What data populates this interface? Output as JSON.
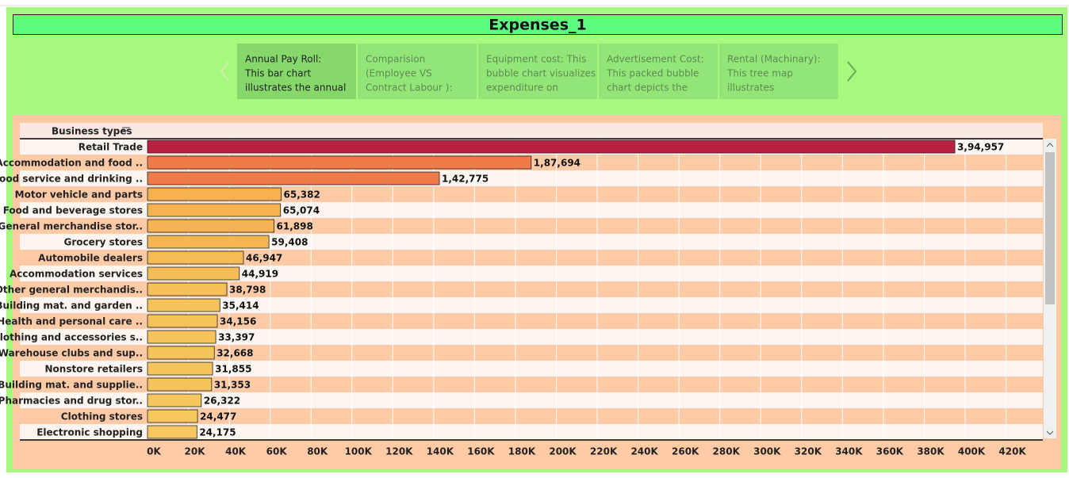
{
  "header": {
    "title": "Expenses_1"
  },
  "story_points": [
    {
      "lines": [
        "Annual Pay Roll:",
        "This bar chart",
        "illustrates the annual"
      ],
      "active": true
    },
    {
      "lines": [
        "Comparision",
        "(Employee VS",
        "Contract  Labour ):"
      ],
      "active": false
    },
    {
      "lines": [
        "Equipment cost: This",
        "bubble chart visualizes",
        "expenditure on"
      ],
      "active": false
    },
    {
      "lines": [
        "Advertisement Cost:",
        "This packed bubble",
        "chart depicts the"
      ],
      "active": false
    },
    {
      "lines": [
        "Rental (Machinary):",
        "This tree map",
        "illustrates"
      ],
      "active": false
    }
  ],
  "chart_data": {
    "type": "bar",
    "orientation": "horizontal",
    "category_header": "Business types",
    "categories": [
      "Retail Trade",
      "Accommodation and food ..",
      "Food service and drinking ..",
      "Motor vehicle and parts",
      "Food and beverage stores",
      "General merchandise stor..",
      "Grocery stores",
      "Automobile dealers",
      "Accommodation services",
      "Other general merchandis..",
      "Building mat. and garden ..",
      "Health and personal care ..",
      "Clothing and accessories s..",
      "Warehouse clubs and sup..",
      "Nonstore retailers",
      "Building mat. and supplie..",
      "Pharmacies and drug stor..",
      "Clothing stores",
      "Electronic shopping"
    ],
    "values": [
      394957,
      187694,
      142775,
      65382,
      65074,
      61898,
      59408,
      46947,
      44919,
      38798,
      35414,
      34156,
      33397,
      32668,
      31855,
      31353,
      26322,
      24477,
      24175
    ],
    "value_labels": [
      "3,94,957",
      "1,87,694",
      "1,42,775",
      "65,382",
      "65,074",
      "61,898",
      "59,408",
      "46,947",
      "44,919",
      "38,798",
      "35,414",
      "34,156",
      "33,397",
      "32,668",
      "31,855",
      "31,353",
      "26,322",
      "24,477",
      "24,175"
    ],
    "colors": [
      "#b91f3e",
      "#ef7a4a",
      "#ef7a4a",
      "#f6b151",
      "#f6b151",
      "#f6b353",
      "#f6b453",
      "#f6bb56",
      "#f6bc57",
      "#f6c05a",
      "#f6c25b",
      "#f6c35b",
      "#f6c35c",
      "#f6c45c",
      "#f6c45c",
      "#f6c45d",
      "#f6c75e",
      "#f6c85f",
      "#f6c85f"
    ],
    "xlim": [
      0,
      438000
    ],
    "xticks": [
      {
        "value": 0,
        "label": "0K"
      },
      {
        "value": 20000,
        "label": "20K"
      },
      {
        "value": 40000,
        "label": "40K"
      },
      {
        "value": 60000,
        "label": "60K"
      },
      {
        "value": 80000,
        "label": "80K"
      },
      {
        "value": 100000,
        "label": "100K"
      },
      {
        "value": 120000,
        "label": "120K"
      },
      {
        "value": 140000,
        "label": "140K"
      },
      {
        "value": 160000,
        "label": "160K"
      },
      {
        "value": 180000,
        "label": "180K"
      },
      {
        "value": 200000,
        "label": "200K"
      },
      {
        "value": 220000,
        "label": "220K"
      },
      {
        "value": 240000,
        "label": "240K"
      },
      {
        "value": 260000,
        "label": "260K"
      },
      {
        "value": 280000,
        "label": "280K"
      },
      {
        "value": 300000,
        "label": "300K"
      },
      {
        "value": 320000,
        "label": "320K"
      },
      {
        "value": 340000,
        "label": "340K"
      },
      {
        "value": 360000,
        "label": "360K"
      },
      {
        "value": 380000,
        "label": "380K"
      },
      {
        "value": 400000,
        "label": "400K"
      },
      {
        "value": 420000,
        "label": "420K"
      }
    ],
    "grid": true
  }
}
